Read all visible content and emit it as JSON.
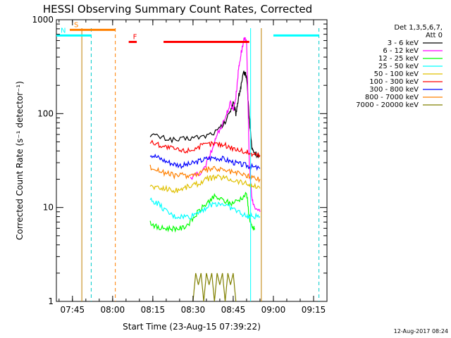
{
  "chart_data": {
    "type": "line",
    "title": "HESSI Observing Summary Count Rates, Corrected",
    "xlabel": "Start Time (23-Aug-15 07:39:22)",
    "ylabel": "Corrected Count Rate (s⁻¹ detector⁻¹)",
    "x_range_minutes_after_0739": [
      0,
      101
    ],
    "x_ticks": [
      {
        "label": "07:45",
        "min": 6
      },
      {
        "label": "08:00",
        "min": 21
      },
      {
        "label": "08:15",
        "min": 36
      },
      {
        "label": "08:30",
        "min": 51
      },
      {
        "label": "08:45",
        "min": 66
      },
      {
        "label": "09:00",
        "min": 81
      },
      {
        "label": "09:15",
        "min": 96
      }
    ],
    "y_scale": "log",
    "ylim": [
      1,
      1000
    ],
    "y_ticks": [
      {
        "label": "1",
        "v": 1
      },
      {
        "label": "10",
        "v": 10
      },
      {
        "label": "100",
        "v": 100
      },
      {
        "label": "1000",
        "v": 1000
      }
    ],
    "legend": {
      "header1": "Det 1,3,5,6,7,",
      "header2": "Att 0",
      "placement": "right"
    },
    "series": [
      {
        "name": "3 - 6 keV",
        "color": "#000000",
        "points": [
          [
            35,
            60
          ],
          [
            40,
            55
          ],
          [
            45,
            52
          ],
          [
            50,
            55
          ],
          [
            55,
            57
          ],
          [
            60,
            65
          ],
          [
            63,
            80
          ],
          [
            65,
            110
          ],
          [
            66,
            130
          ],
          [
            67,
            100
          ],
          [
            68,
            150
          ],
          [
            69,
            200
          ],
          [
            70,
            280
          ],
          [
            71,
            250
          ],
          [
            72,
            90
          ],
          [
            73,
            42
          ],
          [
            74,
            38
          ],
          [
            76,
            35
          ]
        ]
      },
      {
        "name": "6 - 12 keV",
        "color": "#ff00ff",
        "points": [
          [
            50,
            20
          ],
          [
            55,
            25
          ],
          [
            58,
            40
          ],
          [
            60,
            60
          ],
          [
            63,
            90
          ],
          [
            65,
            130
          ],
          [
            66,
            110
          ],
          [
            67,
            150
          ],
          [
            68,
            300
          ],
          [
            69,
            450
          ],
          [
            70,
            600
          ],
          [
            71,
            620
          ],
          [
            72,
            30
          ],
          [
            73,
            12
          ],
          [
            74,
            10
          ],
          [
            76,
            9
          ]
        ]
      },
      {
        "name": "12 - 25 keV",
        "color": "#00ff00",
        "points": [
          [
            35,
            7
          ],
          [
            38,
            6
          ],
          [
            41,
            6
          ],
          [
            44,
            6
          ],
          [
            47,
            6
          ],
          [
            50,
            7
          ],
          [
            53,
            9
          ],
          [
            56,
            11
          ],
          [
            59,
            13
          ],
          [
            62,
            12
          ],
          [
            65,
            11
          ],
          [
            68,
            12
          ],
          [
            71,
            14
          ],
          [
            72,
            8
          ],
          [
            73,
            6
          ],
          [
            74,
            6
          ]
        ]
      },
      {
        "name": "25 - 50 keV",
        "color": "#00ffff",
        "points": [
          [
            35,
            12
          ],
          [
            38,
            11
          ],
          [
            41,
            9
          ],
          [
            44,
            8
          ],
          [
            47,
            8
          ],
          [
            50,
            8
          ],
          [
            53,
            9
          ],
          [
            56,
            10
          ],
          [
            59,
            11
          ],
          [
            62,
            11
          ],
          [
            65,
            10
          ],
          [
            68,
            9
          ],
          [
            71,
            8
          ],
          [
            73,
            8
          ],
          [
            76,
            8
          ]
        ]
      },
      {
        "name": "50 - 100 keV",
        "color": "#e0c000",
        "points": [
          [
            35,
            17
          ],
          [
            38,
            16
          ],
          [
            41,
            16
          ],
          [
            44,
            15
          ],
          [
            47,
            16
          ],
          [
            50,
            17
          ],
          [
            53,
            18
          ],
          [
            56,
            20
          ],
          [
            59,
            21
          ],
          [
            62,
            21
          ],
          [
            65,
            20
          ],
          [
            68,
            19
          ],
          [
            71,
            18
          ],
          [
            73,
            17
          ],
          [
            76,
            16
          ]
        ]
      },
      {
        "name": "100 - 300 keV",
        "color": "#ff0000",
        "points": [
          [
            35,
            50
          ],
          [
            38,
            47
          ],
          [
            41,
            44
          ],
          [
            44,
            42
          ],
          [
            47,
            40
          ],
          [
            50,
            41
          ],
          [
            53,
            44
          ],
          [
            56,
            47
          ],
          [
            59,
            48
          ],
          [
            62,
            47
          ],
          [
            65,
            44
          ],
          [
            68,
            41
          ],
          [
            71,
            39
          ],
          [
            73,
            37
          ],
          [
            76,
            36
          ]
        ]
      },
      {
        "name": "300 - 800 keV",
        "color": "#0000ff",
        "points": [
          [
            35,
            37
          ],
          [
            38,
            34
          ],
          [
            41,
            31
          ],
          [
            44,
            29
          ],
          [
            47,
            28
          ],
          [
            50,
            29
          ],
          [
            53,
            31
          ],
          [
            56,
            33
          ],
          [
            59,
            34
          ],
          [
            62,
            33
          ],
          [
            65,
            31
          ],
          [
            68,
            29
          ],
          [
            71,
            28
          ],
          [
            73,
            27
          ],
          [
            76,
            26
          ]
        ]
      },
      {
        "name": "800 - 7000 keV",
        "color": "#ff8000",
        "points": [
          [
            35,
            27
          ],
          [
            38,
            25
          ],
          [
            41,
            23
          ],
          [
            44,
            22
          ],
          [
            47,
            22
          ],
          [
            50,
            22
          ],
          [
            53,
            23
          ],
          [
            56,
            25
          ],
          [
            59,
            26
          ],
          [
            62,
            25
          ],
          [
            65,
            24
          ],
          [
            68,
            23
          ],
          [
            71,
            22
          ],
          [
            73,
            21
          ],
          [
            76,
            20
          ]
        ]
      },
      {
        "name": "7000 - 20000 keV",
        "color": "#808000",
        "points": [
          [
            51,
            1
          ],
          [
            52,
            2
          ],
          [
            53,
            1.5
          ],
          [
            54,
            2
          ],
          [
            55,
            1
          ],
          [
            56,
            2
          ],
          [
            57,
            1.5
          ],
          [
            58,
            2
          ],
          [
            59,
            1
          ],
          [
            60,
            2
          ],
          [
            61,
            1.5
          ],
          [
            62,
            2
          ],
          [
            63,
            1
          ],
          [
            64,
            2
          ],
          [
            65,
            1.5
          ],
          [
            66,
            2
          ],
          [
            67,
            1
          ]
        ]
      }
    ],
    "annotations": [
      {
        "label": "S",
        "color": "#ff8000",
        "from_min": 5,
        "to_min": 22,
        "y": 780
      },
      {
        "label": "N",
        "color": "#00ffff",
        "from_min": 0,
        "to_min": 13,
        "y": 680
      },
      {
        "label": "",
        "color": "#00ffff",
        "from_min": 81,
        "to_min": 98,
        "y": 680
      },
      {
        "label": "F",
        "color": "#ff0000",
        "from_min": 27,
        "to_min": 30,
        "y": 580
      },
      {
        "label": "",
        "color": "#ff0000",
        "from_min": 40,
        "to_min": 72,
        "y": 580
      }
    ],
    "vlines": [
      {
        "min": 9.5,
        "color": "#c08000",
        "dash": false
      },
      {
        "min": 13,
        "color": "#00cccc",
        "dash": true
      },
      {
        "min": 22,
        "color": "#ff8000",
        "dash": true
      },
      {
        "min": 72.5,
        "color": "#00ffff",
        "dash": false
      },
      {
        "min": 76.5,
        "color": "#c08000",
        "dash": false
      },
      {
        "min": 98,
        "color": "#00cccc",
        "dash": true
      }
    ]
  },
  "footer": {
    "timestamp": "12-Aug-2017 08:24"
  }
}
